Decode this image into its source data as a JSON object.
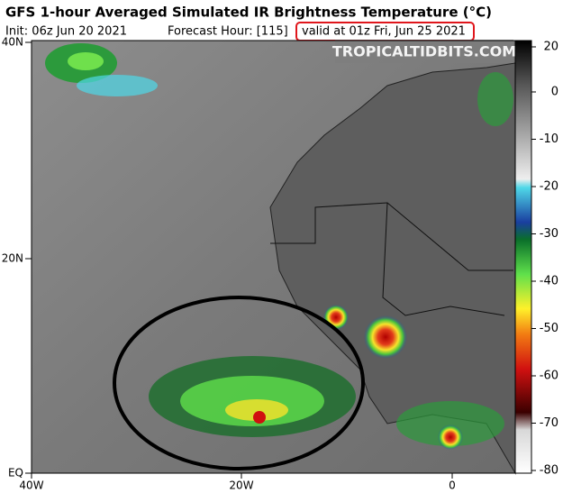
{
  "header": {
    "title": "GFS 1-hour Averaged Simulated IR Brightness Temperature (°C)",
    "init": "Init: 06z Jun 20 2021",
    "forecast_hour": "Forecast Hour: [115]",
    "valid": "valid at 01z Fri, Jun 25 2021"
  },
  "watermark": "TROPICALTIDBITS.COM",
  "map": {
    "lat_labels": [
      "40N",
      "20N",
      "EQ"
    ],
    "lon_labels": [
      "40W",
      "20W",
      "0"
    ]
  },
  "colorbar": {
    "ticks": [
      20,
      0,
      -10,
      -20,
      -30,
      -40,
      -50,
      -60,
      -70,
      -80
    ]
  }
}
